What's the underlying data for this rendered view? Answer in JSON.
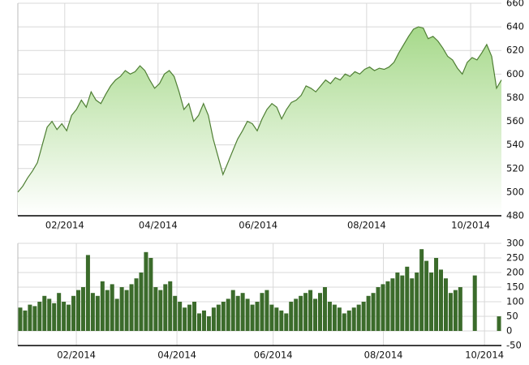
{
  "chart_data": [
    {
      "type": "area",
      "color": "#4f7f34",
      "values": [
        500,
        505,
        512,
        518,
        525,
        540,
        555,
        560,
        553,
        558,
        552,
        565,
        570,
        578,
        572,
        585,
        578,
        575,
        583,
        590,
        595,
        598,
        603,
        600,
        602,
        607,
        603,
        595,
        588,
        592,
        600,
        603,
        598,
        585,
        570,
        575,
        560,
        565,
        575,
        565,
        545,
        530,
        515,
        525,
        535,
        545,
        552,
        560,
        558,
        552,
        562,
        570,
        575,
        572,
        562,
        570,
        576,
        578,
        582,
        590,
        588,
        585,
        590,
        595,
        592,
        597,
        595,
        600,
        598,
        602,
        600,
        604,
        606,
        603,
        605,
        604,
        606,
        610,
        618,
        625,
        632,
        638,
        640,
        639,
        630,
        632,
        628,
        622,
        615,
        612,
        605,
        600,
        610,
        614,
        612,
        618,
        625,
        615,
        588,
        595
      ],
      "ylim": [
        480,
        660
      ],
      "yticks": [
        480,
        500,
        520,
        540,
        560,
        580,
        600,
        620,
        640,
        660
      ],
      "xticks": [
        {
          "value": 9.6,
          "label": "02/2014"
        },
        {
          "value": 28.7,
          "label": "04/2014"
        },
        {
          "value": 49.2,
          "label": "06/2014"
        },
        {
          "value": 71.4,
          "label": "08/2014"
        },
        {
          "value": 92.7,
          "label": "10/2014"
        }
      ],
      "grid": true
    },
    {
      "type": "bar",
      "color": "#3b6b2b",
      "values": [
        80,
        70,
        90,
        85,
        100,
        120,
        110,
        95,
        130,
        100,
        90,
        120,
        140,
        150,
        260,
        130,
        120,
        170,
        140,
        160,
        110,
        150,
        140,
        160,
        180,
        200,
        270,
        250,
        150,
        140,
        160,
        170,
        120,
        100,
        80,
        90,
        100,
        60,
        70,
        50,
        80,
        90,
        100,
        110,
        140,
        120,
        130,
        110,
        90,
        100,
        130,
        140,
        90,
        80,
        70,
        60,
        100,
        110,
        120,
        130,
        140,
        110,
        130,
        150,
        100,
        90,
        80,
        60,
        70,
        80,
        90,
        100,
        120,
        130,
        150,
        160,
        170,
        180,
        200,
        190,
        220,
        180,
        200,
        280,
        240,
        200,
        250,
        210,
        180,
        130,
        140,
        150,
        0,
        0,
        190,
        0,
        0,
        0,
        0,
        50
      ],
      "ylim": [
        -50,
        300
      ],
      "yticks": [
        -50,
        0,
        50,
        100,
        150,
        200,
        250,
        300
      ],
      "xticks": [
        {
          "value": 11.6,
          "label": "02/2014"
        },
        {
          "value": 32.4,
          "label": "04/2014"
        },
        {
          "value": 52.3,
          "label": "06/2014"
        },
        {
          "value": 75.1,
          "label": "08/2014"
        },
        {
          "value": 96.0,
          "label": "10/2014"
        }
      ],
      "grid": true
    }
  ]
}
